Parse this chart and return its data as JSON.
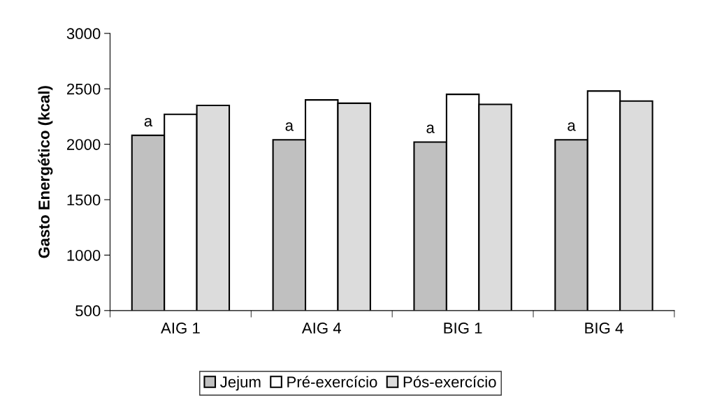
{
  "chart_data": {
    "type": "bar",
    "ylabel": "Gasto Energético (kcal)",
    "categories": [
      "AIG 1",
      "AIG 4",
      "BIG 1",
      "BIG 4"
    ],
    "series": [
      {
        "name": "Jejum",
        "color": "#c0c0c0",
        "values": [
          2080,
          2040,
          2020,
          2040
        ]
      },
      {
        "name": "Pré-exercício",
        "color": "#ffffff",
        "values": [
          2270,
          2400,
          2450,
          2480
        ]
      },
      {
        "name": "Pós-exercício",
        "color": "#dcdcdc",
        "values": [
          2350,
          2370,
          2360,
          2390
        ]
      }
    ],
    "annotations": [
      "a",
      "a",
      "a",
      "a"
    ],
    "ylim": [
      500,
      3000
    ],
    "yticks": [
      500,
      1000,
      1500,
      2000,
      2500,
      3000
    ],
    "grid": false,
    "legend": "bottom"
  }
}
